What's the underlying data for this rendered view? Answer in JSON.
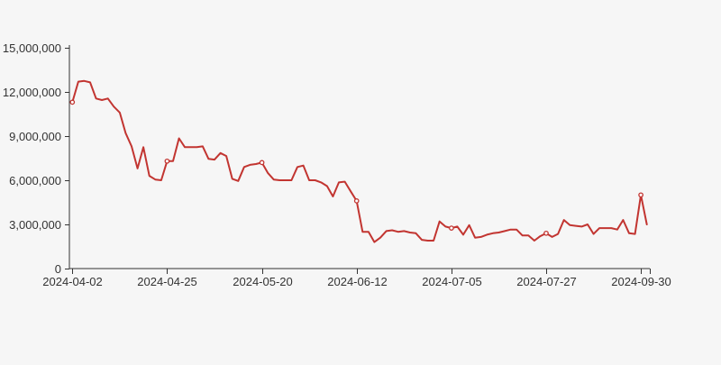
{
  "page": {
    "background_color": "#f6f6f6"
  },
  "chart_data": {
    "type": "line",
    "title": "",
    "xlabel": "",
    "ylabel": "",
    "legend": "none",
    "grid": "off",
    "line_color": "#c23531",
    "marker_fill": "#ffffff",
    "axis_color": "#333333",
    "label_color": "#333333",
    "ylim": [
      0,
      15000000
    ],
    "y_ticks": [
      0,
      3000000,
      6000000,
      9000000,
      12000000,
      15000000
    ],
    "y_tick_labels": [
      "0",
      "3,000,000",
      "6,000,000",
      "9,000,000",
      "12,000,000",
      "15,000,000"
    ],
    "x_tick_labels": [
      "2024-04-02",
      "2024-04-25",
      "2024-05-20",
      "2024-06-12",
      "2024-07-05",
      "2024-07-27",
      "2024-09-30"
    ],
    "x_tick_indices": [
      0,
      16,
      32,
      48,
      64,
      80,
      96
    ],
    "marked_point_indices": [
      0,
      16,
      32,
      48,
      64,
      80,
      96
    ],
    "num_points": 98,
    "values": [
      11300000,
      12700000,
      12750000,
      12650000,
      11550000,
      11450000,
      11550000,
      11000000,
      10600000,
      9200000,
      8300000,
      6800000,
      8250000,
      6300000,
      6050000,
      6000000,
      7300000,
      7300000,
      8850000,
      8250000,
      8250000,
      8250000,
      8300000,
      7450000,
      7400000,
      7850000,
      7650000,
      6100000,
      5950000,
      6900000,
      7050000,
      7100000,
      7200000,
      6500000,
      6050000,
      6000000,
      6000000,
      6000000,
      6900000,
      7000000,
      6000000,
      6000000,
      5850000,
      5600000,
      4900000,
      5850000,
      5900000,
      5250000,
      4600000,
      2500000,
      2500000,
      1800000,
      2100000,
      2550000,
      2600000,
      2500000,
      2550000,
      2450000,
      2400000,
      1950000,
      1900000,
      1900000,
      3200000,
      2850000,
      2750000,
      2850000,
      2300000,
      2950000,
      2100000,
      2150000,
      2300000,
      2400000,
      2450000,
      2550000,
      2650000,
      2650000,
      2250000,
      2250000,
      1900000,
      2200000,
      2400000,
      2150000,
      2350000,
      3300000,
      2950000,
      2900000,
      2850000,
      3000000,
      2350000,
      2750000,
      2750000,
      2750000,
      2650000,
      3300000,
      2400000,
      2350000,
      5000000,
      3000000
    ]
  }
}
